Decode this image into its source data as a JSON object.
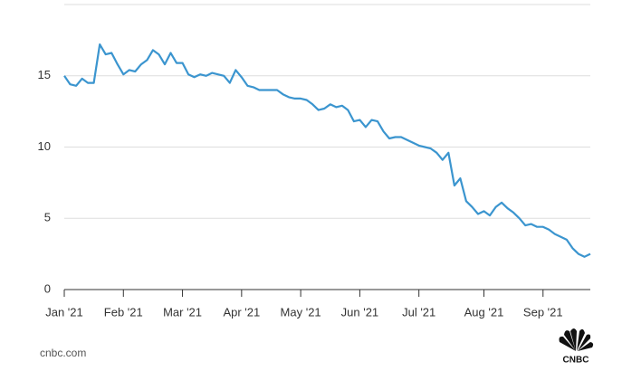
{
  "chart_data": {
    "type": "line",
    "categories": [
      "Jan '21",
      null,
      null,
      null,
      null,
      null,
      null,
      null,
      null,
      null,
      "Feb '21",
      null,
      null,
      null,
      null,
      null,
      null,
      null,
      null,
      null,
      "Mar '21",
      null,
      null,
      null,
      null,
      null,
      null,
      null,
      null,
      null,
      "Apr '21",
      null,
      null,
      null,
      null,
      null,
      null,
      null,
      null,
      null,
      "May '21",
      null,
      null,
      null,
      null,
      null,
      null,
      null,
      null,
      null,
      "Jun '21",
      null,
      null,
      null,
      null,
      null,
      null,
      null,
      null,
      null,
      "Jul '21",
      null,
      null,
      null,
      null,
      null,
      null,
      null,
      null,
      null,
      null,
      "Aug '21",
      null,
      null,
      null,
      null,
      null,
      null,
      null,
      null,
      null,
      "Sep '21",
      null,
      null,
      null,
      null,
      null,
      null,
      null,
      null
    ],
    "series": [
      {
        "color": "#3b95cf",
        "values": [
          15.0,
          14.4,
          14.3,
          14.8,
          14.5,
          14.5,
          17.2,
          16.5,
          16.6,
          15.8,
          15.1,
          15.4,
          15.3,
          15.8,
          16.1,
          16.8,
          16.5,
          15.8,
          16.6,
          15.9,
          15.9,
          15.1,
          14.9,
          15.1,
          15.0,
          15.2,
          15.1,
          15.0,
          14.5,
          15.4,
          14.9,
          14.3,
          14.2,
          14.0,
          14.0,
          14.0,
          14.0,
          13.7,
          13.5,
          13.4,
          13.4,
          13.3,
          13.0,
          12.6,
          12.7,
          13.0,
          12.8,
          12.9,
          12.6,
          11.8,
          11.9,
          11.4,
          11.9,
          11.8,
          11.1,
          10.6,
          10.7,
          10.7,
          10.5,
          10.3,
          10.1,
          10.0,
          9.9,
          9.6,
          9.1,
          9.6,
          7.3,
          7.8,
          6.2,
          5.8,
          5.3,
          5.5,
          5.2,
          5.8,
          6.1,
          5.7,
          5.4,
          5.0,
          4.5,
          4.6,
          4.4,
          4.4,
          4.2,
          3.9,
          3.7,
          3.5,
          2.9,
          2.5,
          2.3,
          2.5
        ]
      }
    ],
    "ylim": [
      0,
      20
    ],
    "yticks": [
      0,
      5,
      10,
      15
    ],
    "grid": true
  },
  "source": "cnbc.com",
  "logo": "CNBC"
}
